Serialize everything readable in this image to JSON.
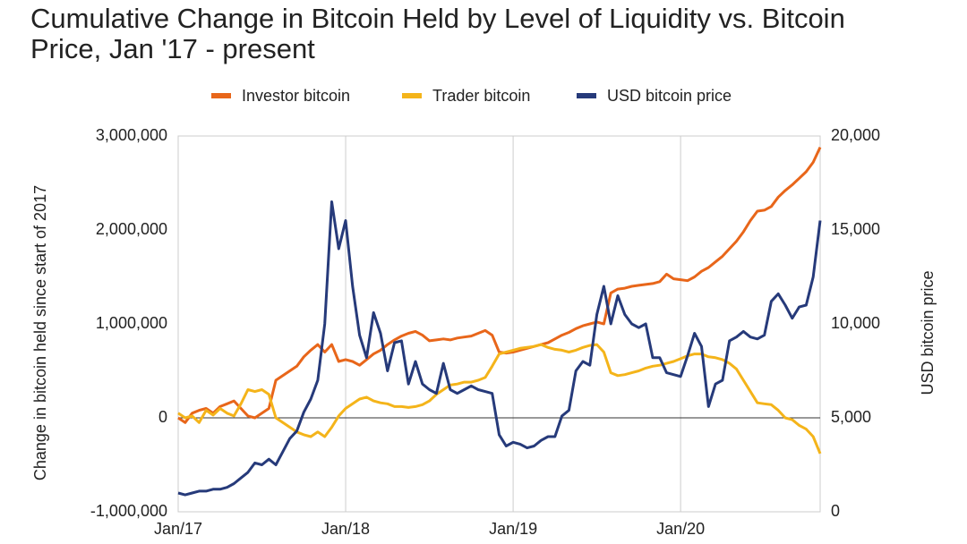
{
  "chart_data": {
    "type": "line",
    "title": "Cumulative Change in Bitcoin Held by Level of Liquidity vs. Bitcoin Price, Jan '17 - present",
    "y_label": "Change in bitcoin held since start of 2017",
    "y2_label": "USD bitcoin price",
    "categories": [
      "Jan/17",
      null,
      null,
      null,
      null,
      null,
      null,
      null,
      null,
      null,
      null,
      null,
      null,
      null,
      null,
      null,
      null,
      null,
      null,
      null,
      null,
      null,
      null,
      null,
      "Jan/18",
      null,
      null,
      null,
      null,
      null,
      null,
      null,
      null,
      null,
      null,
      null,
      null,
      null,
      null,
      null,
      null,
      null,
      null,
      null,
      null,
      null,
      null,
      null,
      "Jan/19",
      null,
      null,
      null,
      null,
      null,
      null,
      null,
      null,
      null,
      null,
      null,
      null,
      null,
      null,
      null,
      null,
      null,
      null,
      null,
      null,
      null,
      null,
      null,
      "Jan/20",
      null,
      null,
      null,
      null,
      null,
      null,
      null,
      null,
      null,
      null,
      null,
      null,
      null,
      null,
      null,
      null,
      null,
      null,
      null,
      null
    ],
    "series": [
      {
        "name": "Investor bitcoin",
        "color": "#e8661a",
        "values": [
          0,
          -50000,
          50000,
          80000,
          100000,
          50000,
          120000,
          150000,
          180000,
          100000,
          20000,
          0,
          50000,
          100000,
          400000,
          450000,
          500000,
          550000,
          650000,
          720000,
          780000,
          700000,
          780000,
          600000,
          620000,
          600000,
          560000,
          620000,
          680000,
          720000,
          780000,
          830000,
          870000,
          900000,
          920000,
          880000,
          820000,
          830000,
          840000,
          830000,
          850000,
          860000,
          870000,
          900000,
          930000,
          880000,
          700000,
          690000,
          700000,
          720000,
          740000,
          760000,
          780000,
          800000,
          840000,
          880000,
          910000,
          950000,
          980000,
          1000000,
          1020000,
          1000000,
          1330000,
          1370000,
          1380000,
          1400000,
          1410000,
          1420000,
          1430000,
          1450000,
          1530000,
          1480000,
          1470000,
          1460000,
          1500000,
          1560000,
          1600000,
          1660000,
          1720000,
          1800000,
          1880000,
          1980000,
          2100000,
          2200000,
          2210000,
          2250000,
          2350000,
          2420000,
          2480000,
          2550000,
          2620000,
          2720000,
          2880000
        ]
      },
      {
        "name": "Trader bitcoin",
        "color": "#f4b41a",
        "values": [
          50000,
          0,
          20000,
          -50000,
          80000,
          30000,
          100000,
          50000,
          20000,
          150000,
          300000,
          280000,
          300000,
          250000,
          0,
          -50000,
          -100000,
          -150000,
          -180000,
          -200000,
          -150000,
          -200000,
          -100000,
          20000,
          100000,
          150000,
          200000,
          220000,
          180000,
          160000,
          150000,
          120000,
          120000,
          110000,
          120000,
          140000,
          180000,
          250000,
          300000,
          350000,
          360000,
          380000,
          380000,
          400000,
          430000,
          550000,
          680000,
          700000,
          720000,
          740000,
          750000,
          760000,
          780000,
          750000,
          730000,
          720000,
          700000,
          720000,
          750000,
          770000,
          780000,
          700000,
          480000,
          450000,
          460000,
          480000,
          500000,
          530000,
          550000,
          560000,
          580000,
          600000,
          630000,
          660000,
          680000,
          680000,
          650000,
          640000,
          620000,
          580000,
          520000,
          400000,
          280000,
          160000,
          150000,
          140000,
          80000,
          0,
          -20000,
          -80000,
          -120000,
          -200000,
          -380000
        ]
      },
      {
        "name": "USD bitcoin price",
        "color": "#263a7a",
        "axis": "y2",
        "values": [
          1000,
          900,
          1000,
          1100,
          1100,
          1200,
          1200,
          1300,
          1500,
          1800,
          2100,
          2600,
          2500,
          2800,
          2500,
          3200,
          3900,
          4300,
          5300,
          6000,
          7000,
          10000,
          16500,
          14000,
          15500,
          12000,
          9400,
          8200,
          10600,
          9500,
          7500,
          9000,
          9100,
          6800,
          8000,
          6800,
          6500,
          6300,
          7900,
          6500,
          6300,
          6500,
          6700,
          6500,
          6400,
          6300,
          4100,
          3500,
          3700,
          3600,
          3400,
          3500,
          3800,
          4000,
          4000,
          5100,
          5400,
          7500,
          8000,
          7800,
          10500,
          12000,
          10000,
          11500,
          10500,
          10000,
          9800,
          10000,
          8200,
          8200,
          7400,
          7300,
          7200,
          8300,
          9500,
          8800,
          5600,
          6800,
          7000,
          9100,
          9300,
          9600,
          9300,
          9200,
          9400,
          11200,
          11600,
          11000,
          10300,
          10900,
          11000,
          12500,
          15500
        ]
      }
    ],
    "ylim": [
      -1000000,
      3000000
    ],
    "yticks": [
      {
        "value": -1000000,
        "label": "-1,000,000"
      },
      0,
      {
        "value": 1000000,
        "label": "1,000,000"
      },
      {
        "value": 2000000,
        "label": "2,000,000"
      },
      {
        "value": 3000000,
        "label": "3,000,000"
      }
    ],
    "y2lim": [
      0,
      20000
    ],
    "y2ticks": [
      0,
      {
        "value": 5000,
        "label": "5,000"
      },
      {
        "value": 10000,
        "label": "10,000"
      },
      {
        "value": 15000,
        "label": "15,000"
      },
      {
        "value": 20000,
        "label": "20,000"
      }
    ],
    "grid": "x",
    "legend": "top"
  }
}
